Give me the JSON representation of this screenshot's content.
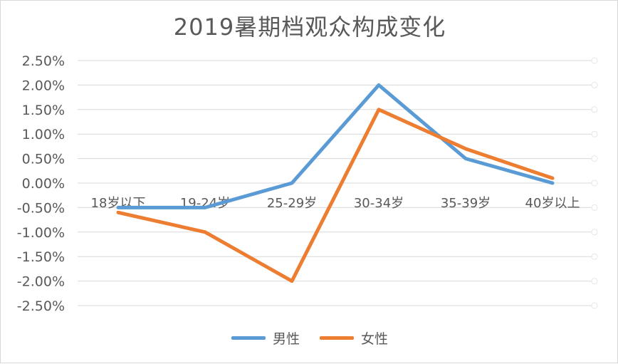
{
  "chart_data": {
    "type": "line",
    "title": "2019暑期档观众构成变化",
    "categories": [
      "18岁以下",
      "19-24岁",
      "25-29岁",
      "30-34岁",
      "35-39岁",
      "40岁以上"
    ],
    "series": [
      {
        "name": "男性",
        "color": "#5b9bd5",
        "values": [
          -0.5,
          -0.5,
          0.0,
          2.0,
          0.5,
          0.0
        ]
      },
      {
        "name": "女性",
        "color": "#ed7d31",
        "values": [
          -0.6,
          -1.0,
          -2.0,
          1.5,
          0.7,
          0.1
        ]
      }
    ],
    "yticks": [
      2.5,
      2.0,
      1.5,
      1.0,
      0.5,
      0.0,
      -0.5,
      -1.0,
      -1.5,
      -2.0,
      -2.5
    ],
    "ytick_labels": [
      "2.50%",
      "2.00%",
      "1.50%",
      "1.00%",
      "0.50%",
      "0.00%",
      "-0.50%",
      "-1.00%",
      "-1.50%",
      "-2.00%",
      "-2.50%"
    ],
    "ylim": [
      -2.5,
      2.5
    ],
    "xlabel": "",
    "ylabel": "",
    "grid": true,
    "legend_position": "bottom"
  }
}
